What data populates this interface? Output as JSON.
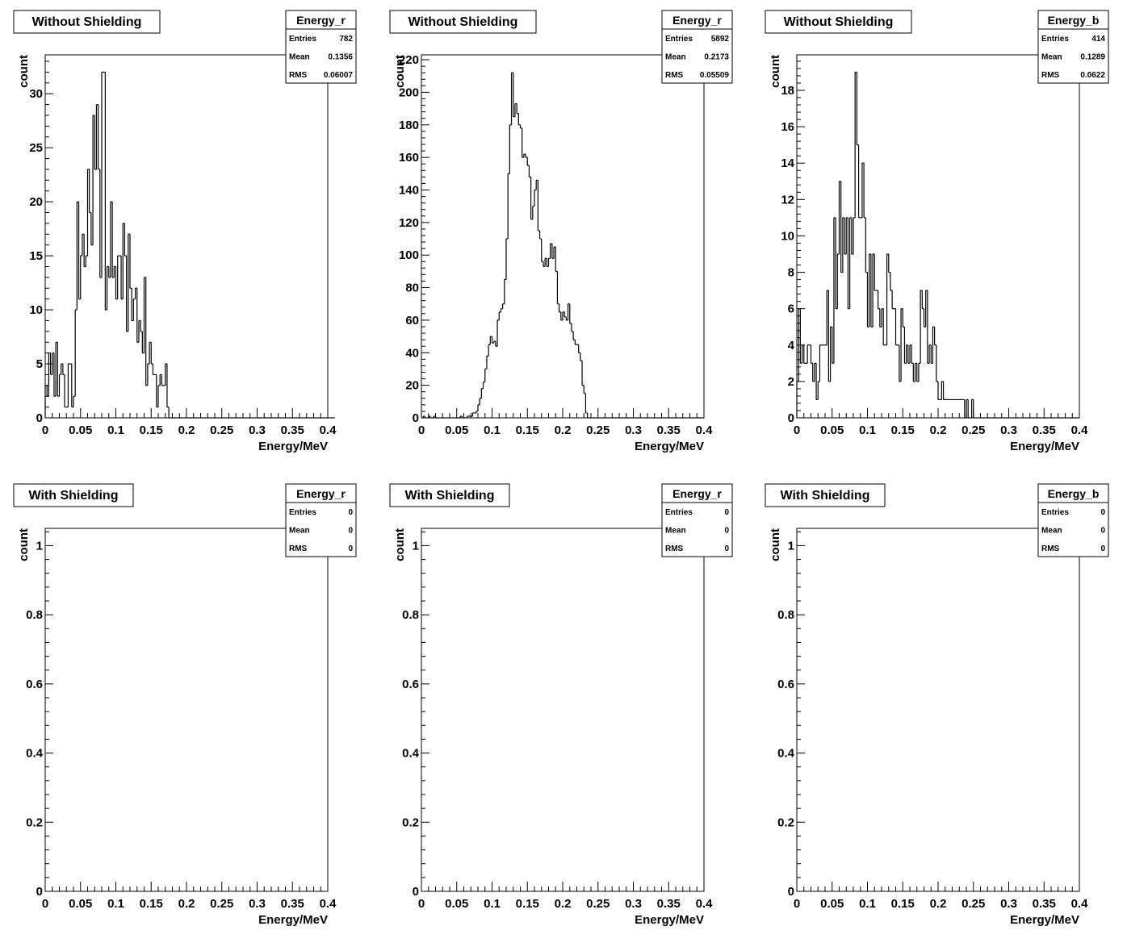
{
  "chart_data": [
    {
      "type": "bar",
      "title": "Without Shielding",
      "histogram_name": "Energy_r",
      "stats": {
        "entries_label": "Entries",
        "entries": "782",
        "mean_label": "Mean",
        "mean": "0.1356",
        "rms_label": "RMS",
        "rms": "0.06007"
      },
      "xlabel": "Energy/MeV",
      "ylabel": "count",
      "xlim": [
        0,
        0.4
      ],
      "ylim": [
        0,
        33.6
      ],
      "x_ticks": [
        "0",
        "0.05",
        "0.1",
        "0.15",
        "0.2",
        "0.25",
        "0.3",
        "0.35",
        "0.4"
      ],
      "y_ticks": [
        0,
        5,
        10,
        15,
        20,
        25,
        30
      ],
      "bin_width": 0.0025,
      "values": [
        3,
        2,
        6,
        4,
        6,
        2,
        7,
        2,
        4,
        5,
        4,
        1,
        1,
        5,
        5,
        1,
        2,
        10,
        20,
        11,
        15,
        17,
        14,
        15,
        23,
        19,
        16,
        28,
        23,
        29,
        23,
        13,
        32,
        32,
        10,
        14,
        13,
        20,
        13,
        14,
        11,
        15,
        15,
        11,
        18,
        15,
        8,
        17,
        12,
        9,
        11,
        12,
        7,
        9,
        8,
        6,
        13,
        3,
        5,
        7,
        5,
        4,
        4,
        1,
        3,
        4,
        3,
        3,
        5,
        1,
        0,
        0,
        0,
        0,
        0,
        0,
        0,
        0,
        0,
        0,
        0,
        0,
        0,
        0,
        0,
        0,
        0,
        0,
        0,
        0,
        0,
        0,
        0,
        0,
        0,
        0,
        0,
        0,
        0,
        0,
        0,
        0,
        0,
        0,
        0,
        0,
        0,
        0,
        0,
        0,
        0,
        0,
        0,
        0,
        0,
        0,
        0,
        0,
        0,
        0,
        0,
        0,
        0,
        0,
        0,
        0,
        0,
        0,
        0,
        0,
        0,
        0,
        0,
        0,
        0,
        0,
        0,
        0,
        0,
        0,
        0,
        0,
        0,
        0,
        0,
        0,
        0,
        0,
        0,
        0,
        0,
        0,
        0,
        0,
        0,
        0,
        0,
        0,
        0,
        0,
        0,
        0,
        0,
        0
      ]
    },
    {
      "type": "bar",
      "title": "Without Shielding",
      "histogram_name": "Energy_r",
      "stats": {
        "entries_label": "Entries",
        "entries": "5892",
        "mean_label": "Mean",
        "mean": "0.2173",
        "rms_label": "RMS",
        "rms": "0.05509"
      },
      "xlabel": "Energy/MeV",
      "ylabel": "count",
      "xlim": [
        0,
        0.4
      ],
      "ylim": [
        0,
        223
      ],
      "x_ticks": [
        "0",
        "0.05",
        "0.1",
        "0.15",
        "0.2",
        "0.25",
        "0.3",
        "0.35",
        "0.4"
      ],
      "y_ticks": [
        0,
        20,
        40,
        60,
        80,
        100,
        120,
        140,
        160,
        180,
        200,
        220
      ],
      "bin_width": 0.0025,
      "values": [
        0,
        1,
        0,
        0,
        1,
        0,
        0,
        1,
        0,
        0,
        0,
        0,
        0,
        0,
        0,
        0,
        0,
        0,
        0,
        0,
        0,
        0,
        1,
        0,
        0,
        0,
        1,
        1,
        1,
        3,
        3,
        4,
        8,
        12,
        18,
        22,
        30,
        38,
        45,
        50,
        46,
        47,
        44,
        60,
        65,
        67,
        70,
        85,
        110,
        150,
        180,
        212,
        185,
        193,
        187,
        180,
        178,
        160,
        162,
        160,
        155,
        148,
        122,
        130,
        140,
        146,
        115,
        110,
        96,
        93,
        98,
        93,
        98,
        107,
        98,
        105,
        90,
        70,
        65,
        60,
        65,
        62,
        60,
        70,
        58,
        53,
        48,
        45,
        45,
        40,
        35,
        20,
        15,
        3,
        0,
        0,
        0,
        0,
        0,
        0,
        0,
        0,
        0,
        0,
        0,
        0,
        0,
        0,
        0,
        0,
        0,
        0,
        0,
        0,
        0,
        0,
        0,
        0,
        0,
        0,
        0,
        0,
        0,
        0,
        0,
        0,
        0,
        0,
        0,
        0,
        0,
        0,
        0,
        0,
        0,
        0,
        0,
        0,
        0,
        0,
        0,
        0,
        0,
        0,
        0,
        0,
        0,
        0,
        0,
        0,
        0,
        0,
        0,
        0,
        0,
        0,
        0,
        0,
        0,
        0
      ]
    },
    {
      "type": "bar",
      "title": "Without Shielding",
      "histogram_name": "Energy_b",
      "stats": {
        "entries_label": "Entries",
        "entries": "414",
        "mean_label": "Mean",
        "mean": "0.1289",
        "rms_label": "RMS",
        "rms": "0.0622"
      },
      "xlabel": "Energy/MeV",
      "ylabel": "count",
      "xlim": [
        0,
        0.4
      ],
      "ylim": [
        0,
        19.95
      ],
      "x_ticks": [
        "0",
        "0.05",
        "0.1",
        "0.15",
        "0.2",
        "0.25",
        "0.3",
        "0.35",
        "0.4"
      ],
      "y_ticks": [
        0,
        2,
        4,
        6,
        8,
        10,
        12,
        14,
        16,
        18
      ],
      "bin_width": 0.0025,
      "values": [
        2,
        6,
        3,
        4,
        3,
        3,
        4,
        4,
        3,
        2,
        3,
        1,
        2,
        4,
        4,
        4,
        4,
        7,
        2,
        5,
        3,
        11,
        6,
        9,
        13,
        8,
        11,
        9,
        11,
        6,
        11,
        9,
        11,
        19,
        15,
        11,
        11,
        14,
        11,
        8,
        5,
        9,
        5,
        9,
        7,
        7,
        6,
        5,
        6,
        4,
        4,
        9,
        8,
        7,
        6,
        6,
        4,
        4,
        2,
        6,
        5,
        3,
        4,
        3,
        4,
        3,
        2,
        3,
        2,
        3,
        7,
        6,
        5,
        7,
        3,
        4,
        3,
        5,
        4,
        2,
        1,
        1,
        2,
        1,
        1,
        1,
        1,
        1,
        1,
        1,
        1,
        1,
        1,
        1,
        1,
        0,
        1,
        0,
        0,
        1,
        0,
        0,
        0,
        0,
        0,
        0,
        0,
        0,
        0,
        0,
        0,
        0,
        0,
        0,
        0,
        0,
        0,
        0,
        0,
        0,
        0,
        0,
        0,
        0,
        0,
        0,
        0,
        0,
        0,
        0,
        0,
        0,
        0,
        0,
        0,
        0,
        0,
        0,
        0,
        0,
        0,
        0,
        0,
        0,
        0,
        0,
        0,
        0,
        0,
        0,
        0,
        0,
        0,
        0,
        0,
        0,
        0,
        0,
        0,
        0
      ]
    },
    {
      "type": "bar",
      "title": "With Shielding",
      "histogram_name": "Energy_r",
      "stats": {
        "entries_label": "Entries",
        "entries": "0",
        "mean_label": "Mean",
        "mean": "0",
        "rms_label": "RMS",
        "rms": "0"
      },
      "xlabel": "Energy/MeV",
      "ylabel": "count",
      "xlim": [
        0,
        0.4
      ],
      "ylim": [
        0,
        1.05
      ],
      "x_ticks": [
        "0",
        "0.05",
        "0.1",
        "0.15",
        "0.2",
        "0.25",
        "0.3",
        "0.35",
        "0.4"
      ],
      "y_ticks": [
        "0",
        "0.2",
        "0.4",
        "0.6",
        "0.8",
        "1"
      ],
      "bin_width": 0.0025,
      "values": []
    },
    {
      "type": "bar",
      "title": "With Shielding",
      "histogram_name": "Energy_r",
      "stats": {
        "entries_label": "Entries",
        "entries": "0",
        "mean_label": "Mean",
        "mean": "0",
        "rms_label": "RMS",
        "rms": "0"
      },
      "xlabel": "Energy/MeV",
      "ylabel": "count",
      "xlim": [
        0,
        0.4
      ],
      "ylim": [
        0,
        1.05
      ],
      "x_ticks": [
        "0",
        "0.05",
        "0.1",
        "0.15",
        "0.2",
        "0.25",
        "0.3",
        "0.35",
        "0.4"
      ],
      "y_ticks": [
        "0",
        "0.2",
        "0.4",
        "0.6",
        "0.8",
        "1"
      ],
      "bin_width": 0.0025,
      "values": []
    },
    {
      "type": "bar",
      "title": "With Shielding",
      "histogram_name": "Energy_b",
      "stats": {
        "entries_label": "Entries",
        "entries": "0",
        "mean_label": "Mean",
        "mean": "0",
        "rms_label": "RMS",
        "rms": "0"
      },
      "xlabel": "Energy/MeV",
      "ylabel": "count",
      "xlim": [
        0,
        0.4
      ],
      "ylim": [
        0,
        1.05
      ],
      "x_ticks": [
        "0",
        "0.05",
        "0.1",
        "0.15",
        "0.2",
        "0.25",
        "0.3",
        "0.35",
        "0.4"
      ],
      "y_ticks": [
        "0",
        "0.2",
        "0.4",
        "0.6",
        "0.8",
        "1"
      ],
      "bin_width": 0.0025,
      "values": []
    }
  ]
}
